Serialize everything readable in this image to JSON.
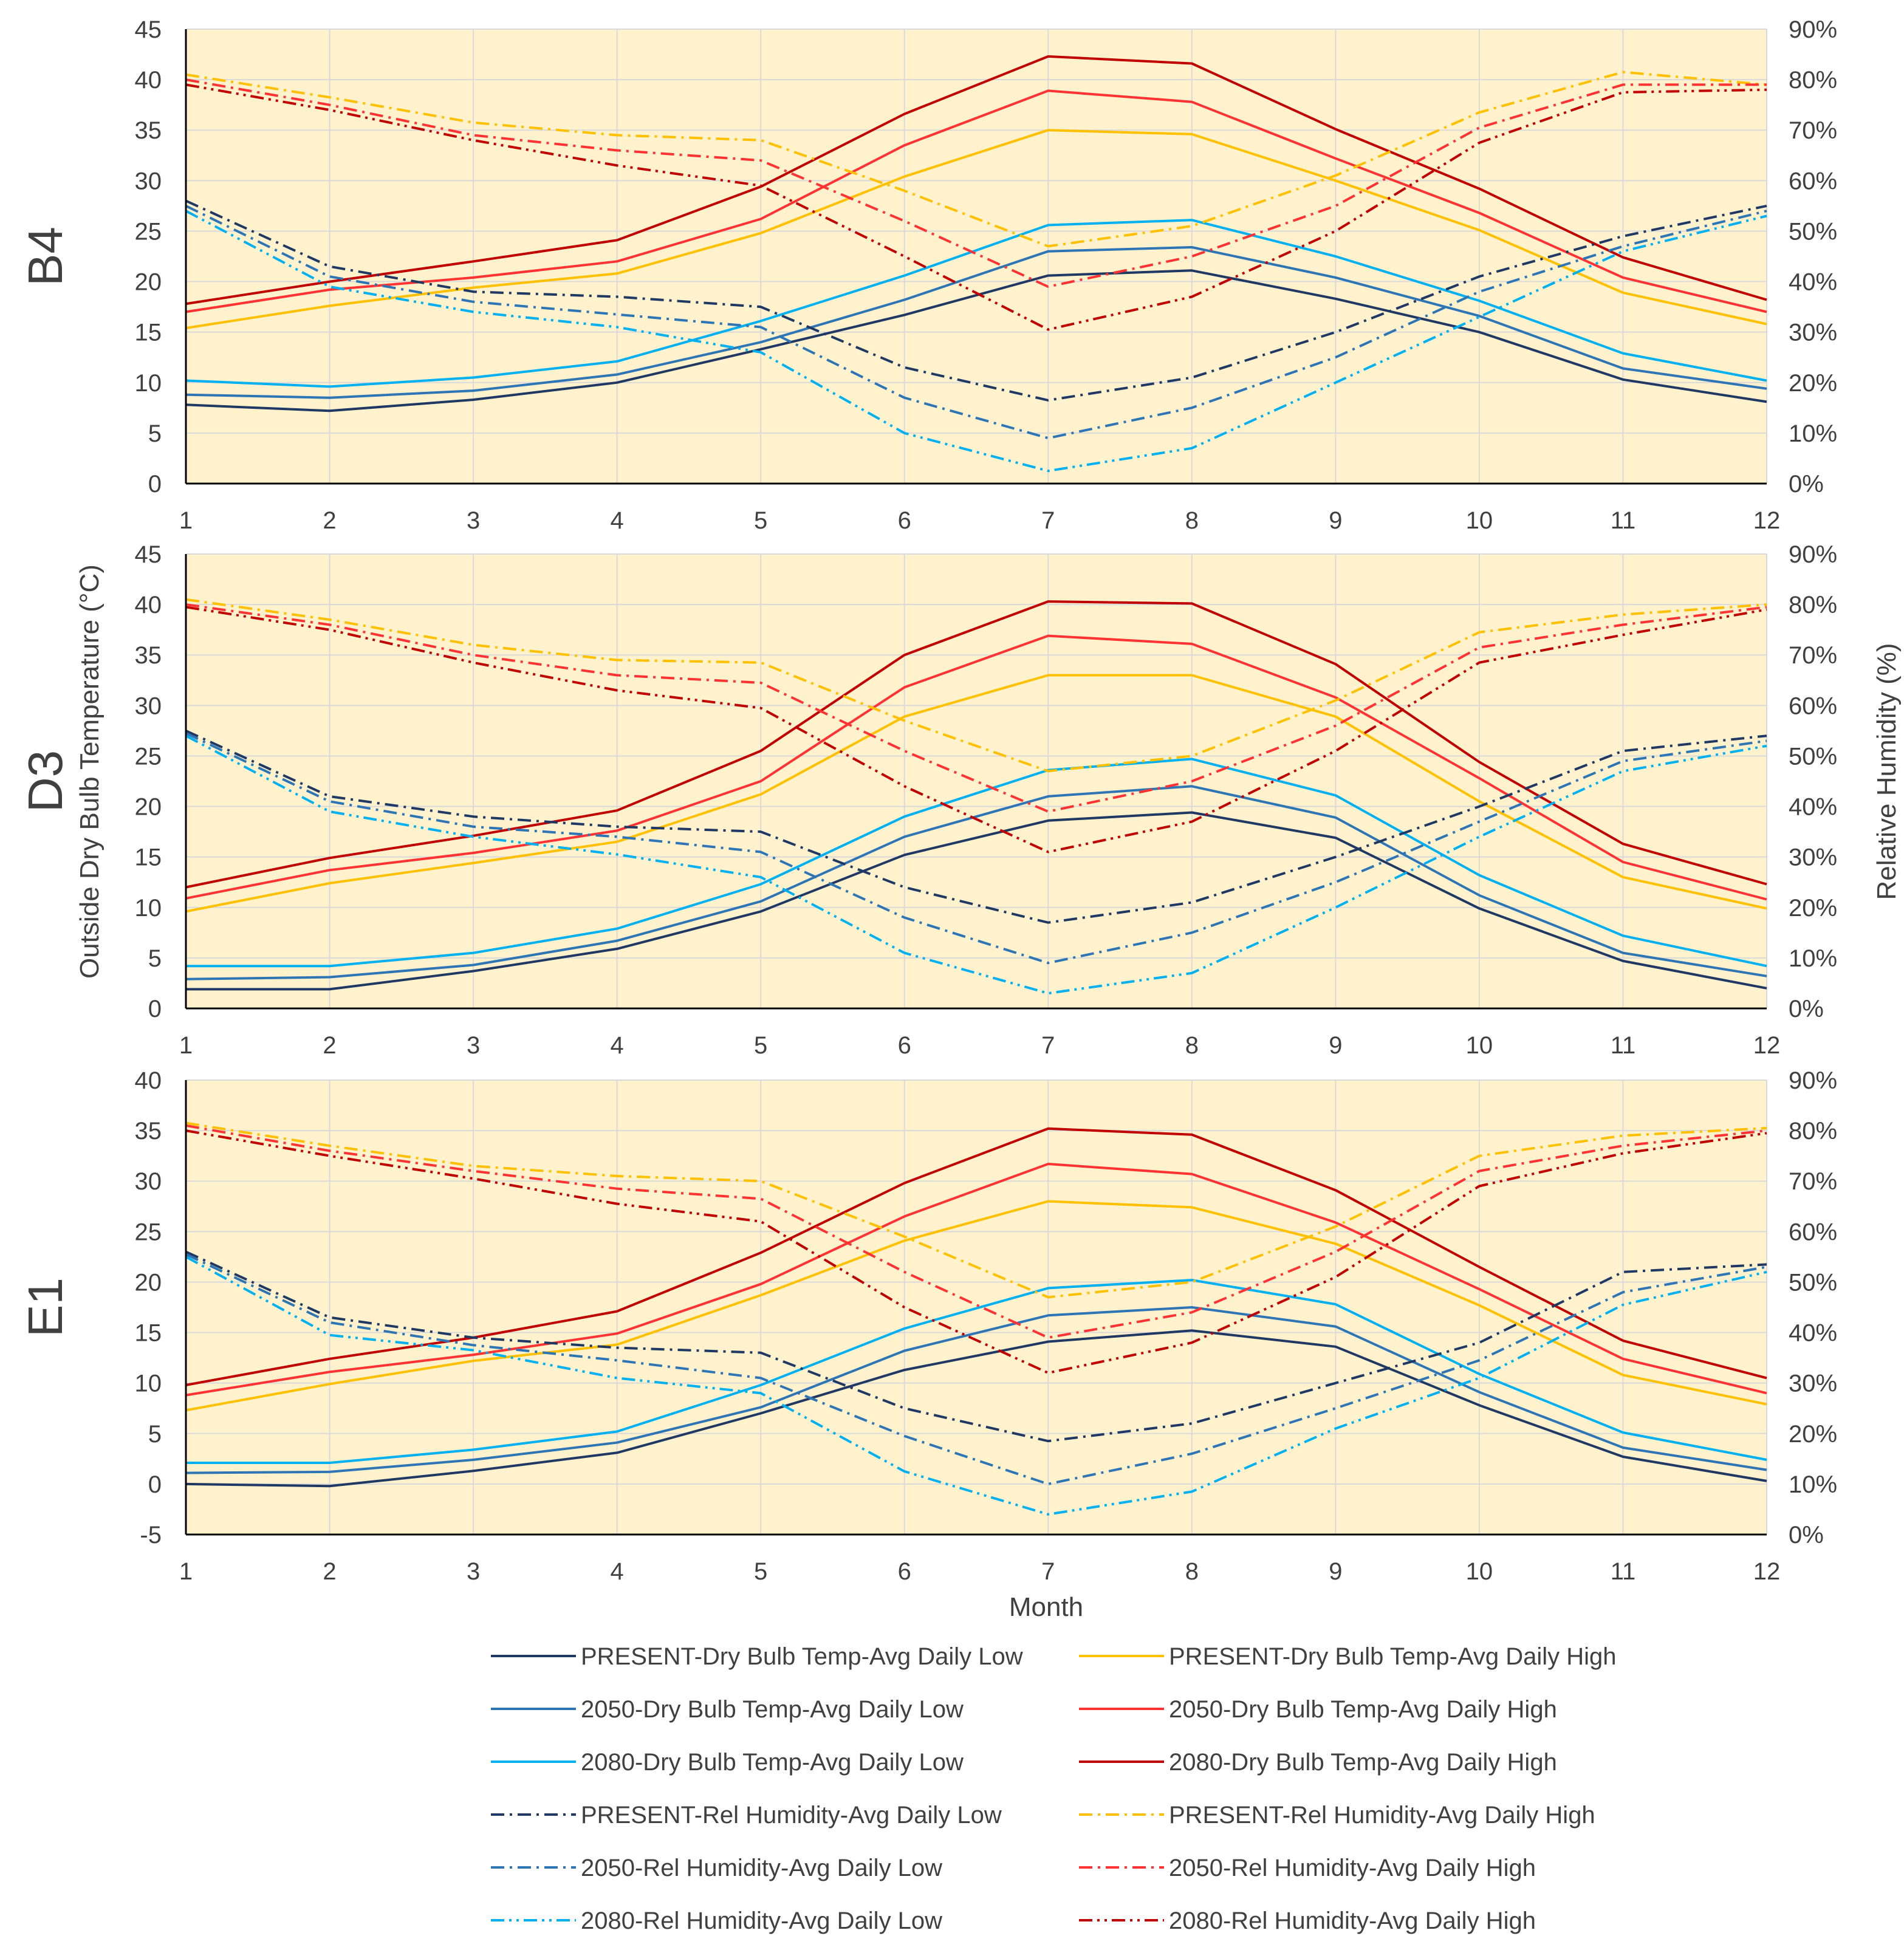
{
  "figure": {
    "left_axis_title": "Outside Dry Bulb Temperature (°C)",
    "right_axis_title": "Relative Humidity (%)",
    "x_axis_title": "Month"
  },
  "colors": {
    "plot_background": "#FFF2CC",
    "grid": "#D9D9D9",
    "axis_text": "#404040"
  },
  "series_styles": [
    {
      "key": "present_temp_low",
      "name": "PRESENT-Dry Bulb Temp-Avg Daily Low",
      "color": "#1F3864",
      "dash": "solid",
      "axis": "left"
    },
    {
      "key": "present_temp_high",
      "name": "PRESENT-Dry Bulb Temp-Avg Daily High",
      "color": "#FFC000",
      "dash": "solid",
      "axis": "left"
    },
    {
      "key": "y2050_temp_low",
      "name": "2050-Dry Bulb Temp-Avg Daily Low",
      "color": "#2E75B6",
      "dash": "solid",
      "axis": "left"
    },
    {
      "key": "y2050_temp_high",
      "name": "2050-Dry Bulb Temp-Avg Daily High",
      "color": "#FF3333",
      "dash": "solid",
      "axis": "left"
    },
    {
      "key": "y2080_temp_low",
      "name": "2080-Dry Bulb Temp-Avg Daily Low",
      "color": "#00B0F0",
      "dash": "solid",
      "axis": "left"
    },
    {
      "key": "y2080_temp_high",
      "name": "2080-Dry Bulb Temp-Avg Daily High",
      "color": "#C00000",
      "dash": "solid",
      "axis": "left"
    },
    {
      "key": "present_rh_low",
      "name": "PRESENT-Rel Humidity-Avg Daily Low",
      "color": "#1F3864",
      "dash": "dashdot",
      "axis": "right"
    },
    {
      "key": "present_rh_high",
      "name": "PRESENT-Rel Humidity-Avg Daily High",
      "color": "#FFC000",
      "dash": "dashdot",
      "axis": "right"
    },
    {
      "key": "y2050_rh_low",
      "name": "2050-Rel Humidity-Avg Daily Low",
      "color": "#2E75B6",
      "dash": "dashdot",
      "axis": "right"
    },
    {
      "key": "y2050_rh_high",
      "name": "2050-Rel Humidity-Avg Daily High",
      "color": "#FF3333",
      "dash": "dashdot",
      "axis": "right"
    },
    {
      "key": "y2080_rh_low",
      "name": "2080-Rel Humidity-Avg Daily Low",
      "color": "#00B0F0",
      "dash": "dashdotdot",
      "axis": "right"
    },
    {
      "key": "y2080_rh_high",
      "name": "2080-Rel Humidity-Avg Daily High",
      "color": "#C00000",
      "dash": "dashdotdot",
      "axis": "right"
    }
  ],
  "chart_data": [
    {
      "type": "line",
      "panel_label": "B4",
      "x": [
        1,
        2,
        3,
        4,
        5,
        6,
        7,
        8,
        9,
        10,
        11,
        12
      ],
      "x_ticks": [
        "1",
        "2",
        "3",
        "4",
        "5",
        "6",
        "7",
        "8",
        "9",
        "10",
        "11",
        "12"
      ],
      "ylim_left": [
        0,
        45
      ],
      "left_ticks": [
        "0",
        "5",
        "10",
        "15",
        "20",
        "25",
        "30",
        "35",
        "40",
        "45"
      ],
      "ylim_right": [
        0,
        90
      ],
      "right_ticks": [
        "0%",
        "10%",
        "20%",
        "30%",
        "40%",
        "50%",
        "60%",
        "70%",
        "80%",
        "90%"
      ],
      "series": {
        "present_temp_low": [
          7.8,
          7.2,
          8.3,
          10.0,
          13.3,
          16.7,
          20.6,
          21.1,
          18.3,
          15.0,
          10.3,
          8.1
        ],
        "y2050_temp_low": [
          8.8,
          8.5,
          9.2,
          10.8,
          14.0,
          18.2,
          23.0,
          23.4,
          20.4,
          16.6,
          11.4,
          9.4
        ],
        "y2080_temp_low": [
          10.2,
          9.6,
          10.5,
          12.1,
          16.1,
          20.6,
          25.6,
          26.1,
          22.5,
          18.1,
          12.9,
          10.2
        ],
        "present_temp_high": [
          15.4,
          17.6,
          19.4,
          20.8,
          24.8,
          30.4,
          35.0,
          34.6,
          30.0,
          25.1,
          18.9,
          15.8
        ],
        "y2050_temp_high": [
          17.0,
          19.2,
          20.4,
          22.0,
          26.2,
          33.5,
          38.9,
          37.8,
          32.2,
          26.8,
          20.4,
          17.0
        ],
        "y2080_temp_high": [
          17.8,
          20.0,
          22.0,
          24.1,
          29.4,
          36.6,
          42.3,
          41.6,
          35.1,
          29.2,
          22.4,
          18.2
        ],
        "present_rh_low": [
          56,
          43,
          38,
          37,
          35,
          23,
          16.5,
          21,
          30,
          41,
          49,
          55
        ],
        "y2050_rh_low": [
          55,
          41,
          36,
          33.5,
          31,
          17,
          9,
          15,
          25,
          38,
          47,
          54
        ],
        "y2080_rh_low": [
          54,
          39,
          34,
          31,
          26,
          10,
          2.5,
          7,
          20,
          33,
          46,
          53
        ],
        "present_rh_high": [
          81,
          76.5,
          71.5,
          69,
          68,
          58,
          47,
          51,
          61,
          73.5,
          81.5,
          79
        ],
        "y2050_rh_high": [
          80,
          75,
          69,
          66,
          64,
          52,
          39,
          45,
          55,
          70.5,
          79,
          79
        ],
        "y2080_rh_high": [
          79,
          74,
          68,
          63,
          59,
          45,
          30.5,
          37,
          50,
          67.5,
          77.5,
          78
        ]
      }
    },
    {
      "type": "line",
      "panel_label": "D3",
      "x": [
        1,
        2,
        3,
        4,
        5,
        6,
        7,
        8,
        9,
        10,
        11,
        12
      ],
      "x_ticks": [
        "1",
        "2",
        "3",
        "4",
        "5",
        "6",
        "7",
        "8",
        "9",
        "10",
        "11",
        "12"
      ],
      "ylim_left": [
        0,
        45
      ],
      "left_ticks": [
        "0",
        "5",
        "10",
        "15",
        "20",
        "25",
        "30",
        "35",
        "40",
        "45"
      ],
      "ylim_right": [
        0,
        90
      ],
      "right_ticks": [
        "0%",
        "10%",
        "20%",
        "30%",
        "40%",
        "50%",
        "60%",
        "70%",
        "80%",
        "90%"
      ],
      "series": {
        "present_temp_low": [
          1.9,
          1.9,
          3.7,
          5.9,
          9.6,
          15.2,
          18.6,
          19.4,
          16.9,
          9.9,
          4.7,
          2.0
        ],
        "y2050_temp_low": [
          2.9,
          3.1,
          4.3,
          6.7,
          10.6,
          17.0,
          21.0,
          22.0,
          18.9,
          11.2,
          5.5,
          3.2
        ],
        "y2080_temp_low": [
          4.2,
          4.2,
          5.5,
          7.9,
          12.3,
          19.0,
          23.6,
          24.7,
          21.1,
          13.2,
          7.2,
          4.2
        ],
        "present_temp_high": [
          9.6,
          12.4,
          14.4,
          16.5,
          21.2,
          28.9,
          33.0,
          33.0,
          28.9,
          20.5,
          13.0,
          9.9
        ],
        "y2050_temp_high": [
          10.9,
          13.7,
          15.4,
          17.6,
          22.5,
          31.8,
          36.9,
          36.1,
          30.8,
          22.8,
          14.5,
          10.8
        ],
        "y2080_temp_high": [
          12.0,
          14.9,
          17.1,
          19.6,
          25.5,
          35.0,
          40.3,
          40.1,
          34.1,
          24.4,
          16.3,
          12.3
        ],
        "present_rh_low": [
          55,
          42,
          38,
          36,
          35,
          24,
          17,
          21,
          30,
          40,
          51,
          54
        ],
        "y2050_rh_low": [
          54.5,
          41,
          36,
          34,
          31,
          18,
          9,
          15,
          25,
          37,
          49,
          53
        ],
        "y2080_rh_low": [
          54,
          39,
          34,
          30.5,
          26,
          11,
          3,
          7,
          20,
          34,
          47,
          52
        ],
        "present_rh_high": [
          81,
          77,
          72,
          69,
          68.5,
          57,
          47,
          50,
          61,
          74.5,
          78,
          80
        ],
        "y2050_rh_high": [
          80,
          76,
          70,
          66,
          64.5,
          51,
          39,
          45,
          56,
          71.5,
          76,
          79.5
        ],
        "y2080_rh_high": [
          79.5,
          75,
          68.5,
          63,
          59.5,
          44,
          31,
          37,
          51,
          68.5,
          74,
          79
        ]
      }
    },
    {
      "type": "line",
      "panel_label": "E1",
      "x": [
        1,
        2,
        3,
        4,
        5,
        6,
        7,
        8,
        9,
        10,
        11,
        12
      ],
      "x_ticks": [
        "1",
        "2",
        "3",
        "4",
        "5",
        "6",
        "7",
        "8",
        "9",
        "10",
        "11",
        "12"
      ],
      "ylim_left": [
        -5,
        40
      ],
      "left_ticks": [
        "-5",
        "0",
        "5",
        "10",
        "15",
        "20",
        "25",
        "30",
        "35",
        "40"
      ],
      "ylim_right": [
        0,
        90
      ],
      "right_ticks": [
        "0%",
        "10%",
        "20%",
        "30%",
        "40%",
        "50%",
        "60%",
        "70%",
        "80%",
        "90%"
      ],
      "series": {
        "present_temp_low": [
          0.0,
          -0.2,
          1.3,
          3.1,
          7.0,
          11.3,
          14.1,
          15.2,
          13.6,
          7.8,
          2.7,
          0.3
        ],
        "y2050_temp_low": [
          1.1,
          1.2,
          2.4,
          4.1,
          7.6,
          13.2,
          16.7,
          17.5,
          15.6,
          9.1,
          3.6,
          1.4
        ],
        "y2080_temp_low": [
          2.1,
          2.1,
          3.4,
          5.2,
          9.8,
          15.4,
          19.4,
          20.2,
          17.8,
          10.9,
          5.1,
          2.4
        ],
        "present_temp_high": [
          7.3,
          9.9,
          12.2,
          13.8,
          18.7,
          24.1,
          28.0,
          27.4,
          23.8,
          17.7,
          10.8,
          7.9
        ],
        "y2050_temp_high": [
          8.8,
          11.1,
          12.8,
          14.9,
          19.8,
          26.5,
          31.7,
          30.7,
          25.9,
          19.3,
          12.4,
          9.0
        ],
        "y2080_temp_high": [
          9.8,
          12.4,
          14.5,
          17.1,
          22.9,
          29.8,
          35.2,
          34.6,
          29.1,
          21.5,
          14.2,
          10.5
        ],
        "present_rh_low": [
          56,
          43,
          39,
          37,
          36,
          25,
          18.5,
          22,
          30,
          38,
          52,
          53.5
        ],
        "y2050_rh_low": [
          55.5,
          42,
          37.5,
          34.5,
          31,
          19.5,
          10,
          16,
          25,
          34.5,
          48,
          53
        ],
        "y2080_rh_low": [
          55,
          39.5,
          36.5,
          31,
          28,
          12.5,
          4,
          8.5,
          21,
          31,
          45.5,
          52
        ],
        "present_rh_high": [
          81.5,
          77,
          73,
          71,
          70,
          59,
          47,
          50,
          61,
          75,
          79,
          80.5
        ],
        "y2050_rh_high": [
          81,
          76,
          72,
          68.5,
          66.5,
          52,
          39,
          44,
          56,
          72,
          77,
          80
        ],
        "y2080_rh_high": [
          80,
          75,
          70.5,
          65.5,
          62,
          45,
          32,
          38,
          51,
          69,
          75.5,
          79.5
        ]
      }
    }
  ],
  "legend": [
    {
      "key": "present_temp_low",
      "label": "PRESENT-Dry Bulb Temp-Avg Daily Low"
    },
    {
      "key": "present_temp_high",
      "label": "PRESENT-Dry Bulb Temp-Avg Daily High"
    },
    {
      "key": "y2050_temp_low",
      "label": "2050-Dry Bulb Temp-Avg Daily Low"
    },
    {
      "key": "y2050_temp_high",
      "label": "2050-Dry Bulb Temp-Avg Daily High"
    },
    {
      "key": "y2080_temp_low",
      "label": "2080-Dry Bulb Temp-Avg Daily Low"
    },
    {
      "key": "y2080_temp_high",
      "label": "2080-Dry Bulb Temp-Avg Daily High"
    },
    {
      "key": "present_rh_low",
      "label": "PRESENT-Rel Humidity-Avg Daily Low"
    },
    {
      "key": "present_rh_high",
      "label": "PRESENT-Rel Humidity-Avg Daily High"
    },
    {
      "key": "y2050_rh_low",
      "label": "2050-Rel Humidity-Avg Daily Low"
    },
    {
      "key": "y2050_rh_high",
      "label": "2050-Rel Humidity-Avg Daily High"
    },
    {
      "key": "y2080_rh_low",
      "label": "2080-Rel Humidity-Avg Daily Low"
    },
    {
      "key": "y2080_rh_high",
      "label": "2080-Rel Humidity-Avg Daily High"
    }
  ]
}
